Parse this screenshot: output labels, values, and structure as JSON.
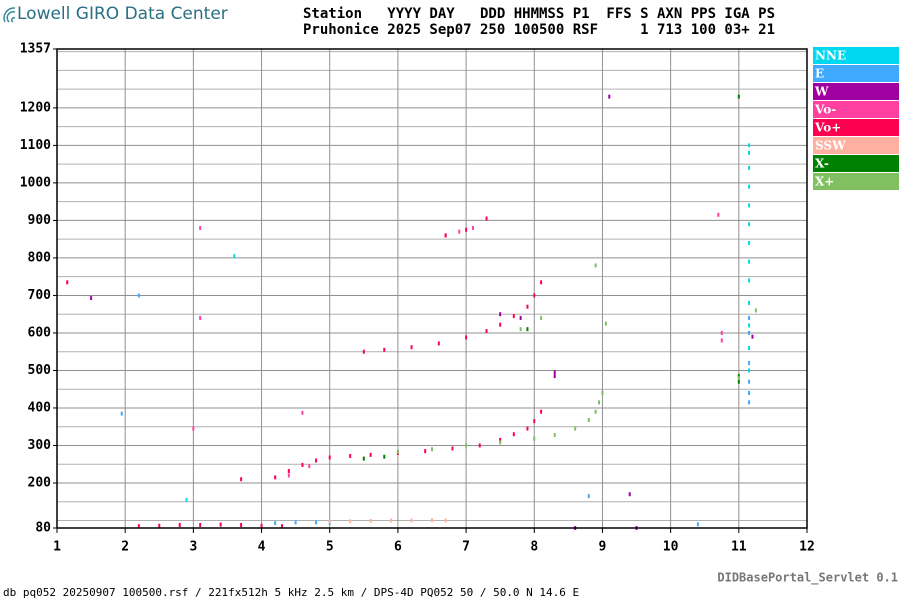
{
  "header": {
    "logo_text": "Lowell GIRO Data Center",
    "station_header": "Station   YYYY DAY   DDD HHMMSS P1  FFS S AXN PPS IGA PS",
    "station_values": "Pruhonice 2025 Sep07 250 100500 RSF     1 713 100 03+ 21"
  },
  "footer": {
    "left": "db pq052 20250907 100500.rsf / 221fx512h 5 kHz 2.5 km / DPS-4D PQ052 50 / 50.0 N 14.6 E",
    "right": "DIDBasePortal_Servlet 0.1"
  },
  "chart_data": {
    "type": "scatter",
    "xlim": [
      1,
      12
    ],
    "xticks": [
      1,
      2,
      3,
      4,
      5,
      6,
      7,
      8,
      9,
      10,
      11,
      12
    ],
    "ylim": [
      80,
      1357
    ],
    "yticks": [
      80,
      200,
      300,
      400,
      500,
      600,
      700,
      800,
      900,
      1000,
      1100,
      1200,
      1357
    ],
    "y_minor_grid": [
      100,
      150,
      250,
      350,
      450,
      550,
      650,
      750,
      850,
      950,
      1050,
      1150,
      1250,
      1300,
      1350
    ],
    "grid": true,
    "legend": "right",
    "series": [
      {
        "name": "NNE",
        "color": "#00d8f0",
        "x": [
          11.15,
          11.15,
          11.15,
          11.15,
          11.15,
          11.15,
          11.15,
          11.15,
          11.15,
          11.15,
          11.15,
          11.15,
          11.15,
          2.9,
          3.6
        ],
        "values": [
          500,
          560,
          620,
          680,
          740,
          790,
          840,
          890,
          940,
          990,
          1040,
          1080,
          1100,
          155,
          805
        ]
      },
      {
        "name": "E",
        "color": "#3fa8ff",
        "x": [
          11.15,
          11.15,
          11.15,
          11.15,
          11.15,
          11.15,
          2.2,
          1.95,
          4.5,
          4.8,
          5.0,
          8.8,
          10.4,
          4.2
        ],
        "values": [
          415,
          440,
          470,
          520,
          600,
          640,
          700,
          385,
          95,
          95,
          94,
          165,
          90,
          93
        ]
      },
      {
        "name": "W",
        "color": "#a000a0",
        "x": [
          8.3,
          8.3,
          9.1,
          7.8,
          1.5,
          7.5,
          8.6,
          9.4,
          9.5,
          11.2
        ],
        "values": [
          485,
          495,
          1230,
          640,
          693,
          650,
          80,
          170,
          80,
          590
        ]
      },
      {
        "name": "Vo-",
        "color": "#ff40a0",
        "x": [
          3.1,
          4.6,
          10.75,
          10.75,
          3.0,
          6.7,
          6.9,
          7.1,
          4.4,
          4.7,
          10.7,
          3.1
        ],
        "values": [
          640,
          387,
          600,
          580,
          345,
          860,
          870,
          880,
          220,
          245,
          915,
          880
        ]
      },
      {
        "name": "Vo+",
        "color": "#ff0050",
        "x": [
          2.2,
          2.5,
          2.8,
          3.1,
          3.4,
          3.7,
          4.0,
          4.3,
          4.2,
          4.4,
          4.6,
          4.8,
          5.0,
          5.3,
          5.6,
          6.0,
          6.4,
          6.8,
          7.2,
          7.5,
          7.7,
          7.9,
          8.0,
          8.1,
          5.5,
          5.8,
          6.2,
          6.6,
          7.0,
          7.3,
          7.5,
          7.7,
          7.9,
          8.0,
          8.1,
          6.7,
          7.0,
          7.3,
          3.7,
          1.15
        ],
        "values": [
          85,
          86,
          88,
          88,
          89,
          88,
          86,
          85,
          215,
          232,
          248,
          260,
          268,
          272,
          275,
          280,
          285,
          292,
          300,
          315,
          330,
          345,
          365,
          390,
          550,
          555,
          562,
          572,
          588,
          605,
          622,
          645,
          670,
          700,
          735,
          860,
          875,
          905,
          210,
          735
        ]
      },
      {
        "name": "SSW",
        "color": "#ffb0a0",
        "x": [
          5.3,
          5.6,
          5.9,
          6.2,
          6.5,
          6.7,
          5.0
        ],
        "values": [
          98,
          99,
          100,
          100,
          101,
          100,
          97
        ]
      },
      {
        "name": "X-",
        "color": "#008000",
        "x": [
          5.5,
          5.8,
          11.0,
          11.0,
          11.0,
          7.9
        ],
        "values": [
          265,
          270,
          470,
          485,
          1230,
          610
        ]
      },
      {
        "name": "X+",
        "color": "#80c060",
        "x": [
          6.0,
          6.5,
          7.0,
          7.5,
          8.0,
          8.3,
          8.6,
          8.8,
          8.9,
          8.95,
          9.0,
          7.8,
          8.1,
          8.9,
          9.05,
          11.0,
          11.25
        ],
        "values": [
          283,
          290,
          300,
          308,
          318,
          328,
          345,
          368,
          390,
          415,
          440,
          610,
          640,
          780,
          625,
          480,
          660
        ]
      }
    ]
  }
}
